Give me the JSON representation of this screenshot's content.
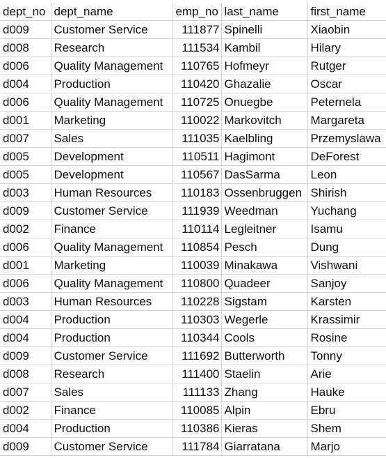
{
  "table": {
    "columns": [
      "dept_no",
      "dept_name",
      "emp_no",
      "last_name",
      "first_name"
    ],
    "rows": [
      [
        "d009",
        "Customer Service",
        "111877",
        "Spinelli",
        "Xiaobin"
      ],
      [
        "d008",
        "Research",
        "111534",
        "Kambil",
        "Hilary"
      ],
      [
        "d006",
        "Quality Management",
        "110765",
        "Hofmeyr",
        "Rutger"
      ],
      [
        "d004",
        "Production",
        "110420",
        "Ghazalie",
        "Oscar"
      ],
      [
        "d006",
        "Quality Management",
        "110725",
        "Onuegbe",
        "Peternela"
      ],
      [
        "d001",
        "Marketing",
        "110022",
        "Markovitch",
        "Margareta"
      ],
      [
        "d007",
        "Sales",
        "111035",
        "Kaelbling",
        "Przemyslawa"
      ],
      [
        "d005",
        "Development",
        "110511",
        "Hagimont",
        "DeForest"
      ],
      [
        "d005",
        "Development",
        "110567",
        "DasSarma",
        "Leon"
      ],
      [
        "d003",
        "Human Resources",
        "110183",
        "Ossenbruggen",
        "Shirish"
      ],
      [
        "d009",
        "Customer Service",
        "111939",
        "Weedman",
        "Yuchang"
      ],
      [
        "d002",
        "Finance",
        "110114",
        "Legleitner",
        "Isamu"
      ],
      [
        "d006",
        "Quality Management",
        "110854",
        "Pesch",
        "Dung"
      ],
      [
        "d001",
        "Marketing",
        "110039",
        "Minakawa",
        "Vishwani"
      ],
      [
        "d006",
        "Quality Management",
        "110800",
        "Quadeer",
        "Sanjoy"
      ],
      [
        "d003",
        "Human Resources",
        "110228",
        "Sigstam",
        "Karsten"
      ],
      [
        "d004",
        "Production",
        "110303",
        "Wegerle",
        "Krassimir"
      ],
      [
        "d004",
        "Production",
        "110344",
        "Cools",
        "Rosine"
      ],
      [
        "d009",
        "Customer Service",
        "111692",
        "Butterworth",
        "Tonny"
      ],
      [
        "d008",
        "Research",
        "111400",
        "Staelin",
        "Arie"
      ],
      [
        "d007",
        "Sales",
        "111133",
        "Zhang",
        "Hauke"
      ],
      [
        "d002",
        "Finance",
        "110085",
        "Alpin",
        "Ebru"
      ],
      [
        "d004",
        "Production",
        "110386",
        "Kieras",
        "Shem"
      ],
      [
        "d009",
        "Customer Service",
        "111784",
        "Giarratana",
        "Marjo"
      ]
    ]
  }
}
